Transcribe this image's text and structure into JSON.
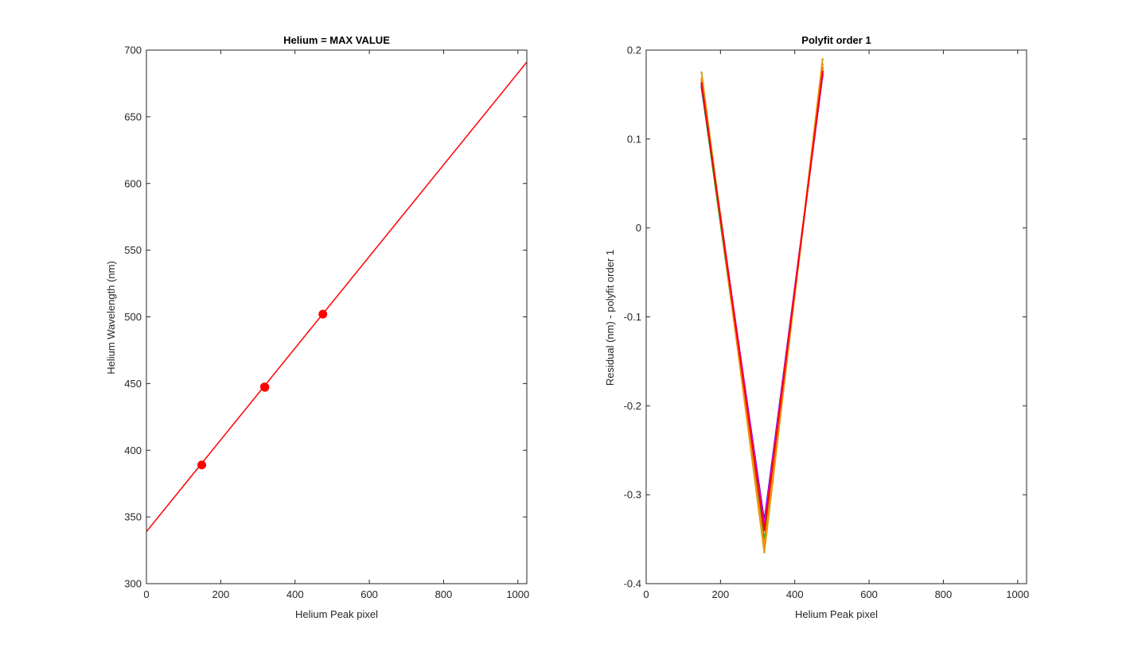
{
  "chart_data": [
    {
      "type": "line",
      "title": "Helium = MAX VALUE",
      "xlabel": "Helium Peak pixel",
      "ylabel": "Helium Wavelength (nm)",
      "xlim": [
        0,
        1024
      ],
      "ylim": [
        300,
        700
      ],
      "xticks": [
        0,
        200,
        400,
        600,
        800,
        1000
      ],
      "xtick_labels": [
        "0",
        "200",
        "400",
        "600",
        "800",
        "1000"
      ],
      "yticks": [
        300,
        350,
        400,
        450,
        500,
        550,
        600,
        650,
        700
      ],
      "ytick_labels": [
        "300",
        "350",
        "400",
        "450",
        "500",
        "550",
        "600",
        "650",
        "700"
      ],
      "grid": false,
      "series": [
        {
          "kind": "scatter",
          "color": "#ff0000",
          "points": [
            {
              "x": 149,
              "y": 389
            },
            {
              "x": 318,
              "y": 447.5
            },
            {
              "x": 319,
              "y": 447.2
            },
            {
              "x": 475,
              "y": 502
            }
          ]
        },
        {
          "kind": "line",
          "color": "#ff0000",
          "points": [
            {
              "x": 0,
              "y": 339
            },
            {
              "x": 1024,
              "y": 691
            }
          ]
        }
      ]
    },
    {
      "type": "line",
      "title": "Polyfit order 1",
      "xlabel": "Helium Peak pixel",
      "ylabel": "Residual (nm) - polyfit order 1",
      "xlim": [
        0,
        1024
      ],
      "ylim": [
        -0.4,
        0.2
      ],
      "xticks": [
        0,
        200,
        400,
        600,
        800,
        1000
      ],
      "xtick_labels": [
        "0",
        "200",
        "400",
        "600",
        "800",
        "1000"
      ],
      "yticks": [
        -0.4,
        -0.3,
        -0.2,
        -0.1,
        0,
        0.1,
        0.2
      ],
      "ytick_labels": [
        "-0.4",
        "-0.3",
        "-0.2",
        "-0.1",
        "0",
        "0.1",
        "0.2"
      ],
      "grid": false,
      "series": [
        {
          "color": "#0000ff",
          "x": [
            149,
            318,
            475
          ],
          "y": [
            0.158,
            -0.33,
            0.172
          ]
        },
        {
          "color": "#00a000",
          "x": [
            149,
            318,
            475
          ],
          "y": [
            0.16,
            -0.352,
            0.18
          ]
        },
        {
          "color": "#a0522d",
          "x": [
            149,
            318,
            475
          ],
          "y": [
            0.166,
            -0.338,
            0.176
          ]
        },
        {
          "color": "#ff00ff",
          "x": [
            149,
            318,
            475
          ],
          "y": [
            0.162,
            -0.334,
            0.174
          ]
        },
        {
          "color": "#d4a017",
          "x": [
            149,
            318,
            475
          ],
          "y": [
            0.175,
            -0.365,
            0.19
          ]
        },
        {
          "color": "#ff8c00",
          "x": [
            149,
            318,
            475
          ],
          "y": [
            0.168,
            -0.358,
            0.184
          ]
        },
        {
          "color": "#ff0000",
          "x": [
            149,
            318,
            475
          ],
          "y": [
            0.163,
            -0.34,
            0.176
          ]
        }
      ]
    }
  ]
}
